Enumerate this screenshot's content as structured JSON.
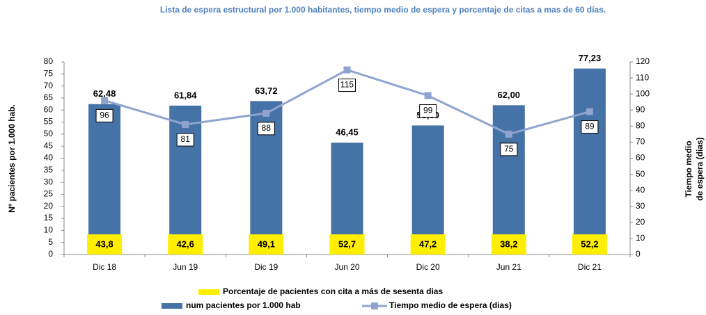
{
  "chart_data": {
    "type": "bar-line",
    "title": "Lista de espera estructural por 1.000 habitantes, tiempo medio de espera y porcentaje de citas a mas de 60 días.",
    "ylabel": "Nº pacientes por 1.000 hab.",
    "y2label": [
      "Tiempo medio",
      "de espera (dias)"
    ],
    "categories": [
      "Dic 18",
      "Jun 19",
      "Dic 19",
      "Jun 20",
      "Dic 20",
      "Jun 21",
      "Dic 21"
    ],
    "ylim": [
      0,
      80
    ],
    "yticks": [
      0,
      5,
      10,
      15,
      20,
      25,
      30,
      35,
      40,
      45,
      50,
      55,
      60,
      65,
      70,
      75,
      80
    ],
    "y2lim": [
      0,
      120
    ],
    "y2ticks": [
      0,
      10,
      20,
      30,
      40,
      50,
      60,
      70,
      80,
      90,
      100,
      110,
      120
    ],
    "grid": false,
    "series": [
      {
        "name": "num pacientes por 1.000 hab",
        "type": "bar",
        "color": "#4572a7",
        "values": [
          62.48,
          61.84,
          63.72,
          46.45,
          53.6,
          62.0,
          77.23
        ],
        "value_labels": [
          "62,48",
          "61,84",
          "63,72",
          "46,45",
          "53,60",
          "62,00",
          "77,23"
        ]
      },
      {
        "name": "Tiempo medio de espera (dias)",
        "type": "line",
        "axis": "y2",
        "color": "#8fa4cf",
        "values": [
          96,
          81,
          88,
          115,
          99,
          75,
          89
        ]
      },
      {
        "name": "Porcentaje de pacientes con cita a más de  sesenta dias",
        "type": "label-box",
        "color": "#ffee00",
        "values": [
          43.8,
          42.6,
          49.1,
          52.7,
          47.2,
          38.2,
          52.2
        ],
        "value_labels": [
          "43,8",
          "42,6",
          "49,1",
          "52,7",
          "47,2",
          "38,2",
          "52,2"
        ]
      }
    ]
  }
}
